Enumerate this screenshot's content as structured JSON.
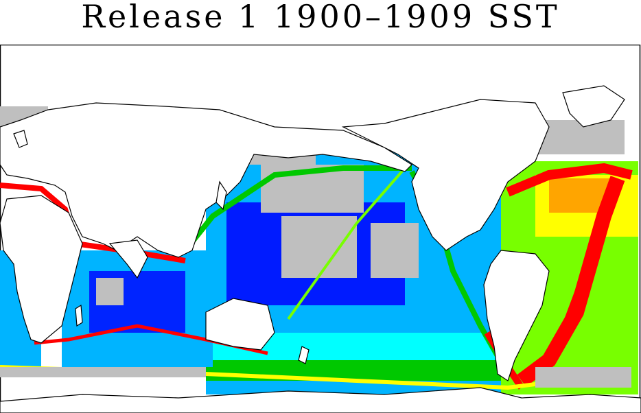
{
  "title": "Release 1 1900–1909 SST",
  "palette": {
    "missing": "#bfbfbf",
    "very_low": "#0000ff",
    "low": "#00b4ff",
    "mid_low": "#00ffff",
    "mid": "#00c800",
    "mid_high": "#78ff00",
    "high": "#ffff00",
    "very_high": "#ffa500",
    "max": "#ff0000",
    "land": "#ffffff",
    "coast": "#000000"
  }
}
